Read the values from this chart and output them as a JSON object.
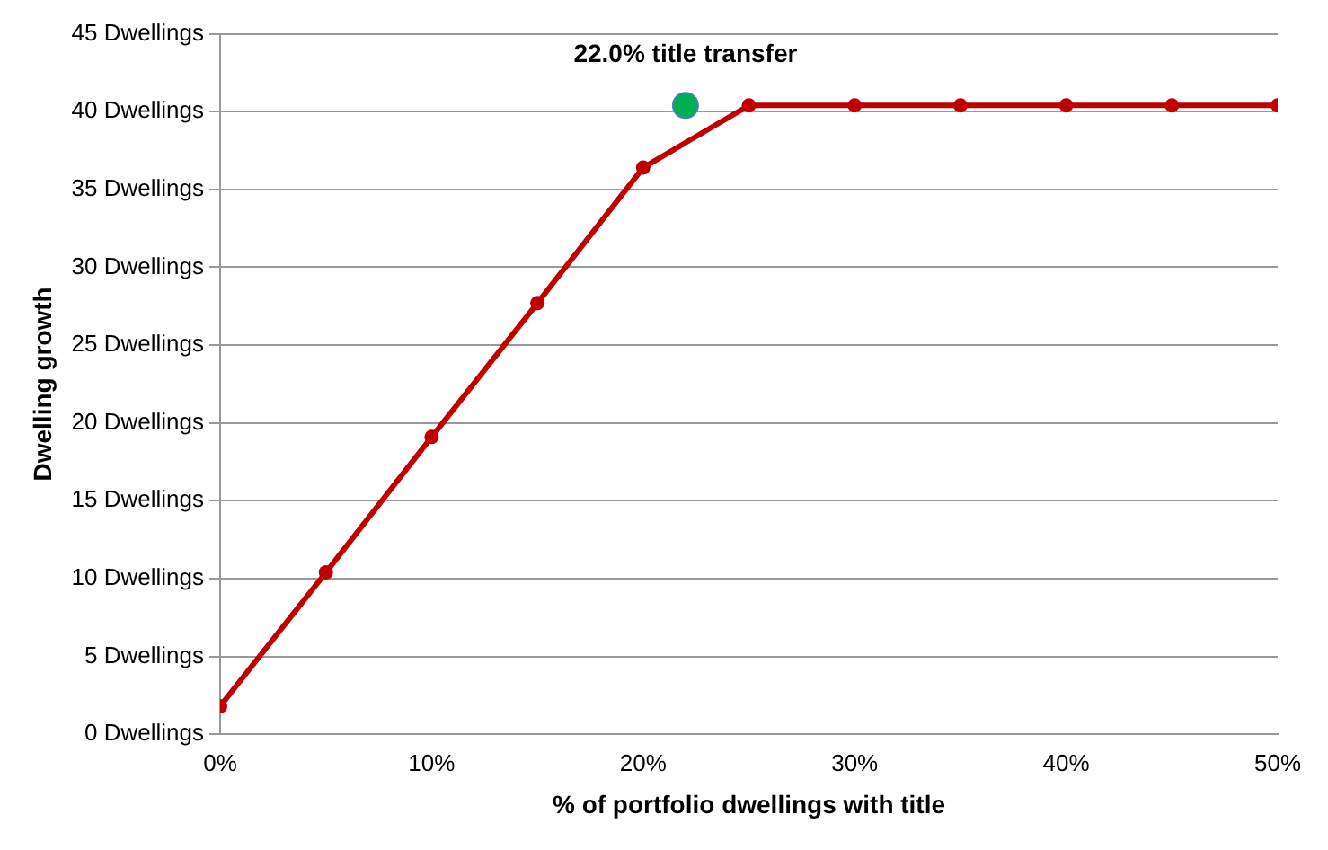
{
  "chart_data": {
    "type": "line",
    "xlabel": "% of portfolio dwellings with title",
    "ylabel": "Dwelling growth",
    "x": [
      0,
      5,
      10,
      15,
      20,
      25,
      30,
      35,
      40,
      45,
      50
    ],
    "series": [
      {
        "type": "line",
        "color": "#c00000",
        "values": [
          1.8,
          10.4,
          19.1,
          27.7,
          36.4,
          40.4,
          40.4,
          40.4,
          40.4,
          40.4,
          40.4
        ]
      },
      {
        "type": "scatter",
        "color": "#00b050",
        "x": [
          22
        ],
        "values": [
          40.4
        ]
      }
    ],
    "annotations": [
      {
        "text": "22.0% title transfer",
        "x": 22,
        "y": 40.4
      }
    ],
    "xlim": [
      0,
      50
    ],
    "xticks": [
      {
        "value": 0,
        "label": "0%"
      },
      {
        "value": 10,
        "label": "10%"
      },
      {
        "value": 20,
        "label": "20%"
      },
      {
        "value": 30,
        "label": "30%"
      },
      {
        "value": 40,
        "label": "40%"
      },
      {
        "value": 50,
        "label": "50%"
      }
    ],
    "ylim": [
      0,
      45
    ],
    "yticks": [
      {
        "value": 0,
        "label": "0 Dwellings"
      },
      {
        "value": 5,
        "label": "5 Dwellings"
      },
      {
        "value": 10,
        "label": "10 Dwellings"
      },
      {
        "value": 15,
        "label": "15 Dwellings"
      },
      {
        "value": 20,
        "label": "20 Dwellings"
      },
      {
        "value": 25,
        "label": "25 Dwellings"
      },
      {
        "value": 30,
        "label": "30 Dwellings"
      },
      {
        "value": 35,
        "label": "35 Dwellings"
      },
      {
        "value": 40,
        "label": "40 Dwellings"
      },
      {
        "value": 45,
        "label": "45 Dwellings"
      }
    ],
    "grid": "y",
    "legend": false,
    "marker": "circle",
    "line_style": "solid"
  }
}
